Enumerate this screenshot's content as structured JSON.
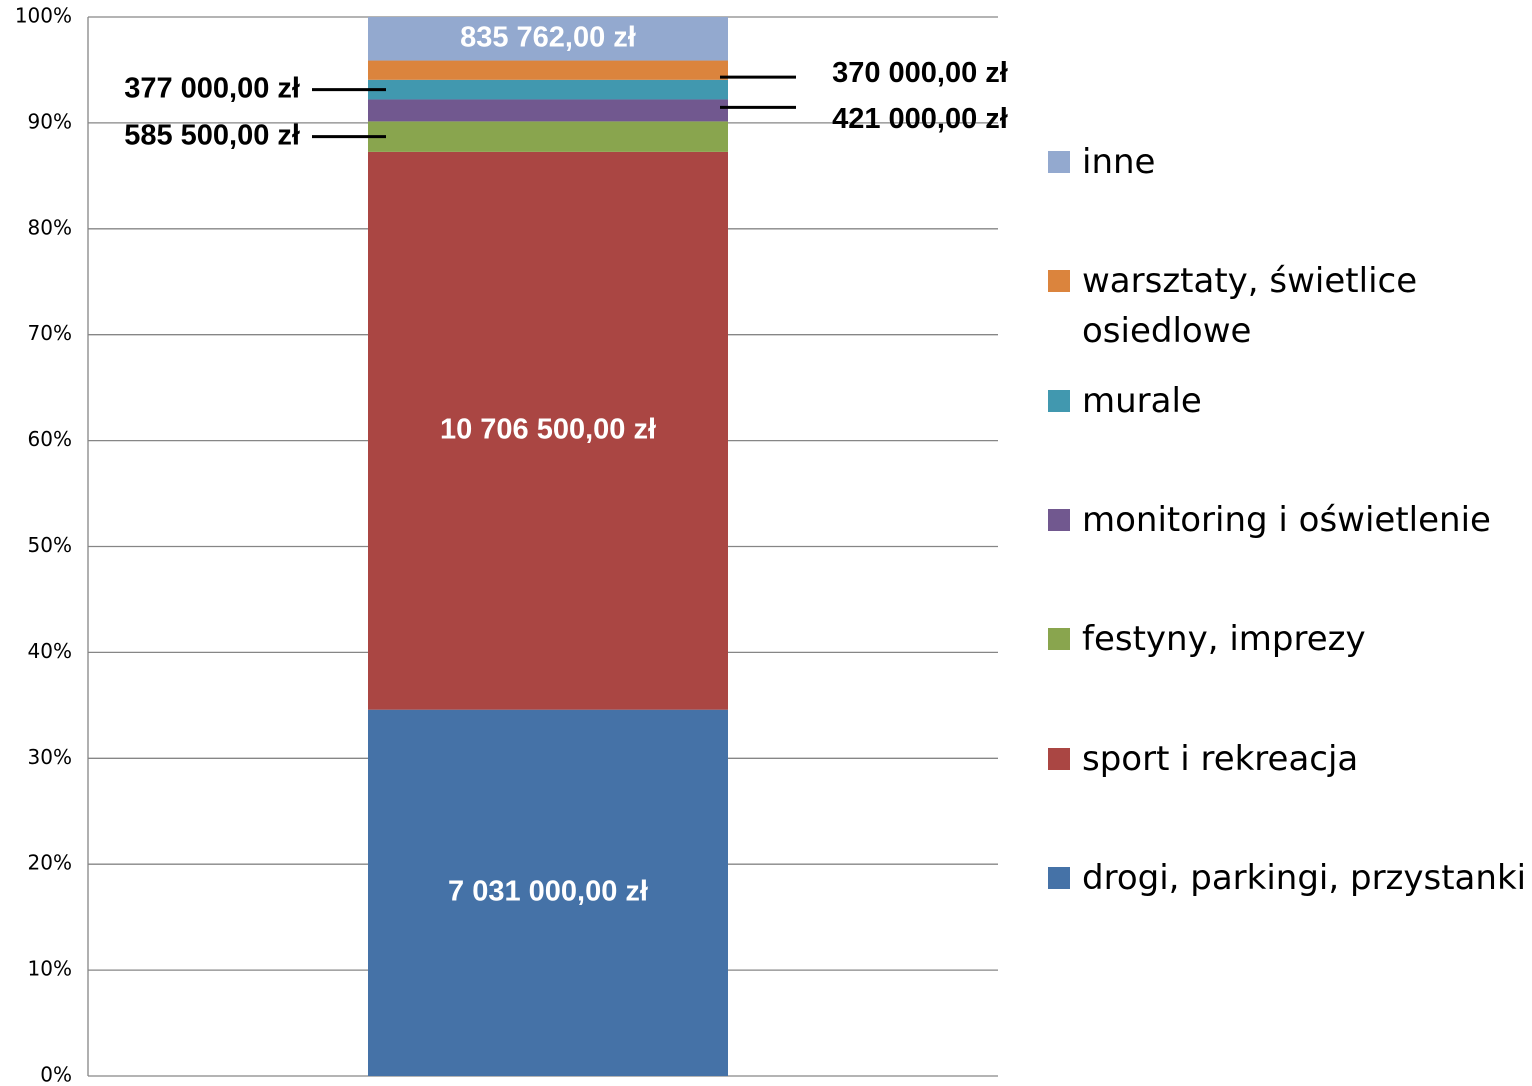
{
  "chart_data": {
    "type": "bar",
    "stacked": "percent",
    "ylim": [
      0,
      100
    ],
    "yticks": [
      {
        "value": 0,
        "label": "0%"
      },
      {
        "value": 10,
        "label": "10%"
      },
      {
        "value": 20,
        "label": "20%"
      },
      {
        "value": 30,
        "label": "30%"
      },
      {
        "value": 40,
        "label": "40%"
      },
      {
        "value": 50,
        "label": "50%"
      },
      {
        "value": 60,
        "label": "60%"
      },
      {
        "value": 70,
        "label": "70%"
      },
      {
        "value": 80,
        "label": "80%"
      },
      {
        "value": 90,
        "label": "90%"
      },
      {
        "value": 100,
        "label": "100%"
      }
    ],
    "grid": true,
    "legend": "right",
    "series": [
      {
        "name": "drogi, parkingi, przystanki",
        "color": "#4572a7",
        "values": [
          7031000
        ],
        "value_labels": [
          "7 031 000,00 zł"
        ]
      },
      {
        "name": "sport i rekreacja",
        "color": "#aa4643",
        "values": [
          10706500
        ],
        "value_labels": [
          "10 706 500,00 zł"
        ]
      },
      {
        "name": "festyny, imprezy",
        "color": "#89a54e",
        "values": [
          585500
        ],
        "value_labels": [
          "585 500,00 zł"
        ]
      },
      {
        "name": "monitoring i oświetlenie",
        "color": "#71588f",
        "values": [
          421000
        ],
        "value_labels": [
          "421 000,00 zł"
        ]
      },
      {
        "name": "murale",
        "color": "#4198af",
        "values": [
          377000
        ],
        "value_labels": [
          "377 000,00 zł"
        ]
      },
      {
        "name": "warsztaty, świetlice osiedlowe",
        "color": "#db843d",
        "values": [
          370000
        ],
        "value_labels": [
          "370 000,00 zł"
        ]
      },
      {
        "name": "inne",
        "color": "#93a9cf",
        "values": [
          835762
        ],
        "value_labels": [
          "835 762,00 zł"
        ]
      }
    ]
  }
}
